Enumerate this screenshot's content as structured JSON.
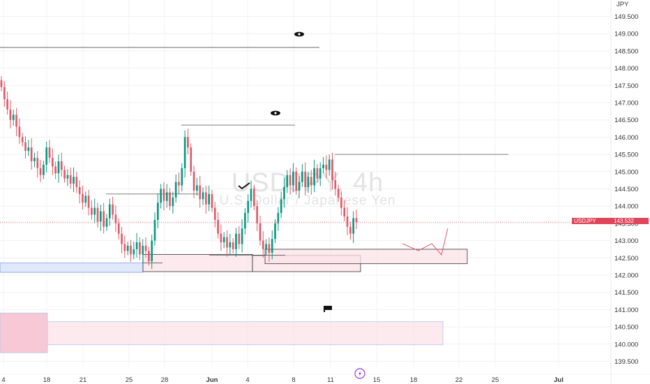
{
  "watermark": {
    "symbol_timeframe": "USDJPY, 4h",
    "description": "U.S. Dollar / Japanese Yen"
  },
  "price_scale": {
    "currency": "JPY"
  },
  "current_price": {
    "symbol": "USDJPY",
    "value": "143.532"
  },
  "colors": {
    "up": "#089981",
    "down": "#e05a6a",
    "zone_fill": "#fbe3ea",
    "zone_border": "#e78aa2",
    "blue_zone": "#dde6fb",
    "current_line": "#f0707f"
  },
  "icons": [
    "eye-icon",
    "eye-icon",
    "check-icon",
    "flag-icon",
    "lightning-icon"
  ],
  "chart_data": {
    "type": "candlestick",
    "ylim": [
      139.3,
      149.9
    ],
    "y_ticks": [
      139.5,
      140.0,
      140.5,
      141.0,
      141.5,
      142.0,
      142.5,
      143.0,
      143.5,
      144.0,
      144.5,
      145.0,
      145.5,
      146.0,
      146.5,
      147.0,
      147.5,
      148.0,
      148.5,
      149.0,
      149.5
    ],
    "y_tick_labels": [
      "139.500",
      "140.000",
      "140.500",
      "141.000",
      "141.500",
      "142.000",
      "142.500",
      "143.000",
      "143.500",
      "144.000",
      "144.500",
      "145.000",
      "145.500",
      "146.000",
      "146.500",
      "147.000",
      "147.500",
      "148.000",
      "148.500",
      "149.000",
      "149.500"
    ],
    "x_tick_labels": [
      "4",
      "18",
      "21",
      "25",
      "28",
      "Jun",
      "4",
      "8",
      "11",
      "15",
      "18",
      "22",
      "25",
      "Jul"
    ],
    "x_tick_bold": [
      false,
      false,
      false,
      false,
      false,
      true,
      false,
      false,
      false,
      false,
      false,
      false,
      false,
      true
    ],
    "closes": [
      147.45,
      147.1,
      146.8,
      146.5,
      146.65,
      146.3,
      146.0,
      145.85,
      145.6,
      145.7,
      145.3,
      145.4,
      145.1,
      144.9,
      145.2,
      145.7,
      145.4,
      145.15,
      144.95,
      145.3,
      145.05,
      144.8,
      144.9,
      144.65,
      144.85,
      144.55,
      144.35,
      144.1,
      144.3,
      143.95,
      143.75,
      143.95,
      143.55,
      143.85,
      143.4,
      143.65,
      144.05,
      143.75,
      143.5,
      143.2,
      142.9,
      142.7,
      142.85,
      142.6,
      142.75,
      142.95,
      142.6,
      142.85,
      142.7,
      142.4,
      143.0,
      143.6,
      144.1,
      144.5,
      144.15,
      144.4,
      144.0,
      144.25,
      144.7,
      144.6,
      145.1,
      146.0,
      145.7,
      145.0,
      144.45,
      144.6,
      144.2,
      144.4,
      144.05,
      144.35,
      143.95,
      143.6,
      143.2,
      142.95,
      143.1,
      142.8,
      142.95,
      142.75,
      143.2,
      142.9,
      143.35,
      143.8,
      144.15,
      144.5,
      144.0,
      143.5,
      143.0,
      142.75,
      142.9,
      142.65,
      143.05,
      143.5,
      143.8,
      144.2,
      144.55,
      144.9,
      144.6,
      145.0,
      144.45,
      144.7,
      145.0,
      144.55,
      144.85,
      144.6,
      145.1,
      144.8,
      145.1,
      145.2,
      145.05,
      145.35,
      144.75,
      144.5,
      144.25,
      143.95,
      143.7,
      143.4,
      143.2,
      143.65,
      143.53
    ],
    "forecast_path": [
      [
        577,
        349
      ],
      [
        600,
        359
      ],
      [
        619,
        349
      ],
      [
        633,
        365
      ],
      [
        642,
        327
      ]
    ],
    "horizontal_levels": [
      {
        "price": 148.6,
        "label": ""
      },
      {
        "price": 146.35,
        "label": ""
      },
      {
        "price": 145.5,
        "label": ""
      },
      {
        "price": 144.35,
        "label": ""
      },
      {
        "price": 142.58,
        "label": ""
      },
      {
        "price": 142.75,
        "label": ""
      },
      {
        "price": 142.35,
        "label": ""
      }
    ],
    "zones": [
      {
        "name": "blue-demand-zone",
        "top": 142.35,
        "bottom": 142.08
      },
      {
        "name": "demand-zone-a",
        "top": 142.6,
        "bottom": 142.1
      },
      {
        "name": "demand-zone-b",
        "top": 142.57,
        "bottom": 142.1
      },
      {
        "name": "demand-zone-c",
        "top": 142.75,
        "bottom": 142.33
      },
      {
        "name": "lower-zone",
        "top": 140.65,
        "bottom": 139.98
      }
    ]
  }
}
